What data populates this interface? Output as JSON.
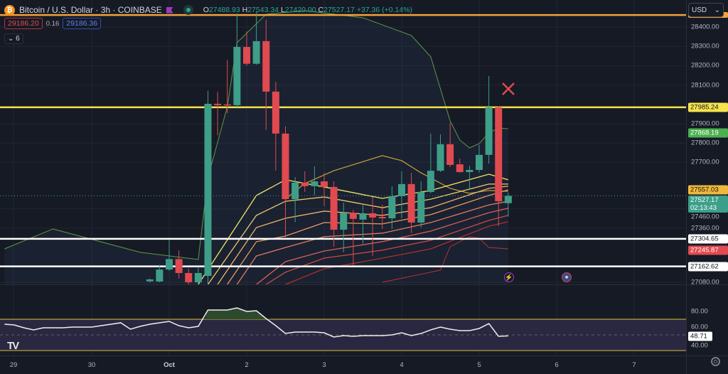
{
  "header": {
    "symbol_icon": "bitcoin-icon",
    "title": "Bitcoin / U.S. Dollar · 3h · COINBASE",
    "open_label": "O",
    "open": "27488.93",
    "high_label": "H",
    "high": "27543.34",
    "low_label": "L",
    "low": "27420.00",
    "close_label": "C",
    "close": "27527.17",
    "change": "+37.36 (+0.14%)",
    "sell_price": "29186.20",
    "spread": "0.16",
    "buy_price": "29186.36",
    "indicators_collapsed_count": "6"
  },
  "currency": "USD",
  "colors": {
    "up": "#3e9e88",
    "down": "#e04a50",
    "background": "#161a25",
    "grid": "#222632",
    "yellow_line": "#f7e34b",
    "orange_line": "#f2a33a",
    "white_line": "#ffffff",
    "upper_band": "#5e9a44",
    "lower_band": "#b8303a",
    "golden_ma": "#c9a23a",
    "rsi_line": "#eeeeee",
    "rsi_band": "#b8a23a",
    "rsi_fill": "#2a2740",
    "overbought_fill": "#2e4a2e"
  },
  "chart_data": {
    "type": "candlestick",
    "interval": "3h",
    "time_axis_ticks": [
      "29",
      "30",
      "Oct",
      "2",
      "3",
      "4",
      "5",
      "6",
      "7"
    ],
    "price_axis_ticks": [
      "28400.00",
      "28300.00",
      "28200.00",
      "28100.00",
      "27900.00",
      "27800.00",
      "27700.00",
      "27460.00",
      "27360.00",
      "27080.00"
    ],
    "price_tick_values": [
      28400,
      28300,
      28200,
      28100,
      27900,
      27800,
      27700,
      27460,
      27360,
      27080
    ],
    "ylim": [
      27080,
      28460
    ],
    "grid": true,
    "candles": [
      {
        "t": "Sep 30 18:00",
        "o": 27085,
        "h": 27100,
        "l": 27078,
        "c": 27095
      },
      {
        "t": "Sep 30 21:00",
        "o": 27084,
        "h": 27170,
        "l": 27080,
        "c": 27146
      },
      {
        "t": "Oct 1 00:00",
        "o": 27146,
        "h": 27300,
        "l": 27140,
        "c": 27200
      },
      {
        "t": "Oct 1 03:00",
        "o": 27200,
        "h": 27245,
        "l": 27100,
        "c": 27128
      },
      {
        "t": "Oct 1 06:00",
        "o": 27128,
        "h": 27150,
        "l": 27060,
        "c": 27080
      },
      {
        "t": "Oct 1 09:00",
        "o": 27080,
        "h": 27160,
        "l": 27070,
        "c": 27128
      },
      {
        "t": "Oct 1 12:00",
        "o": 27113,
        "h": 28070,
        "l": 27070,
        "c": 28003
      },
      {
        "t": "Oct 1 15:00",
        "o": 28003,
        "h": 28065,
        "l": 27840,
        "c": 27996
      },
      {
        "t": "Oct 1 18:00",
        "o": 28000,
        "h": 28230,
        "l": 27955,
        "c": 27995
      },
      {
        "t": "Oct 1 21:00",
        "o": 27996,
        "h": 28470,
        "l": 27985,
        "c": 28297
      },
      {
        "t": "Oct 2 00:00",
        "o": 28297,
        "h": 28378,
        "l": 28200,
        "c": 28210
      },
      {
        "t": "Oct 2 03:00",
        "o": 28210,
        "h": 28480,
        "l": 28205,
        "c": 28327
      },
      {
        "t": "Oct 2 06:00",
        "o": 28327,
        "h": 28437,
        "l": 27867,
        "c": 28066
      },
      {
        "t": "Oct 2 09:00",
        "o": 28066,
        "h": 28117,
        "l": 27657,
        "c": 27849
      },
      {
        "t": "Oct 2 12:00",
        "o": 27849,
        "h": 27886,
        "l": 27308,
        "c": 27510
      },
      {
        "t": "Oct 2 15:00",
        "o": 27510,
        "h": 27624,
        "l": 27390,
        "c": 27595
      },
      {
        "t": "Oct 2 18:00",
        "o": 27595,
        "h": 27654,
        "l": 27547,
        "c": 27577
      },
      {
        "t": "Oct 2 21:00",
        "o": 27577,
        "h": 27680,
        "l": 27530,
        "c": 27602
      },
      {
        "t": "Oct 3 00:00",
        "o": 27602,
        "h": 27646,
        "l": 27474,
        "c": 27573
      },
      {
        "t": "Oct 3 03:00",
        "o": 27573,
        "h": 27602,
        "l": 27264,
        "c": 27352
      },
      {
        "t": "Oct 3 06:00",
        "o": 27352,
        "h": 27492,
        "l": 27235,
        "c": 27440
      },
      {
        "t": "Oct 3 09:00",
        "o": 27440,
        "h": 27455,
        "l": 27168,
        "c": 27408
      },
      {
        "t": "Oct 3 12:00",
        "o": 27404,
        "h": 27481,
        "l": 27279,
        "c": 27437
      },
      {
        "t": "Oct 3 15:00",
        "o": 27437,
        "h": 27521,
        "l": 27216,
        "c": 27415
      },
      {
        "t": "Oct 3 18:00",
        "o": 27418,
        "h": 27481,
        "l": 27356,
        "c": 27411
      },
      {
        "t": "Oct 3 21:00",
        "o": 27411,
        "h": 27577,
        "l": 27356,
        "c": 27525
      },
      {
        "t": "Oct 4 00:00",
        "o": 27525,
        "h": 27654,
        "l": 27411,
        "c": 27588
      },
      {
        "t": "Oct 4 03:00",
        "o": 27588,
        "h": 27646,
        "l": 27334,
        "c": 27389
      },
      {
        "t": "Oct 4 06:00",
        "o": 27389,
        "h": 27602,
        "l": 27363,
        "c": 27547
      },
      {
        "t": "Oct 4 09:00",
        "o": 27547,
        "h": 27849,
        "l": 27540,
        "c": 27657
      },
      {
        "t": "Oct 4 12:00",
        "o": 27657,
        "h": 27845,
        "l": 27650,
        "c": 27794
      },
      {
        "t": "Oct 4 15:00",
        "o": 27794,
        "h": 27904,
        "l": 27676,
        "c": 27687
      },
      {
        "t": "Oct 4 18:00",
        "o": 27690,
        "h": 27720,
        "l": 27647,
        "c": 27650
      },
      {
        "t": "Oct 4 21:00",
        "o": 27650,
        "h": 27683,
        "l": 27566,
        "c": 27661
      },
      {
        "t": "Oct 5 00:00",
        "o": 27661,
        "h": 27790,
        "l": 27647,
        "c": 27739
      },
      {
        "t": "Oct 5 03:00",
        "o": 27739,
        "h": 28146,
        "l": 27694,
        "c": 27985
      },
      {
        "t": "Oct 5 06:00",
        "o": 27985,
        "h": 27990,
        "l": 27371,
        "c": 27499
      },
      {
        "t": "Oct 5 09:00",
        "o": 27488.93,
        "h": 27543.34,
        "l": 27420.0,
        "c": 27527.17
      }
    ],
    "upper_band": [
      [
        "Sep 28 21:00",
        27253
      ],
      [
        "Sep 29 12:00",
        27356
      ],
      [
        "Sep 30 15:00",
        27235
      ],
      [
        "Oct 1 09:00",
        27198
      ],
      [
        "Oct 1 12:00",
        27621
      ],
      [
        "Oct 1 18:00",
        27988
      ],
      [
        "Oct 1 21:00",
        28319
      ],
      [
        "Oct 2 06:00",
        28466
      ],
      [
        "Oct 2 18:00",
        28485
      ],
      [
        "Oct 3 12:00",
        28448
      ],
      [
        "Oct 4 03:00",
        28356
      ],
      [
        "Oct 4 09:00",
        28246
      ],
      [
        "Oct 4 15:00",
        27915
      ],
      [
        "Oct 4 18:00",
        27816
      ],
      [
        "Oct 4 21:00",
        27775
      ],
      [
        "Oct 5 00:00",
        27797
      ],
      [
        "Oct 5 03:00",
        27852
      ],
      [
        "Oct 5 06:00",
        27878
      ],
      [
        "Oct 5 09:00",
        27874
      ]
    ],
    "lower_band": [
      [
        "Oct 3 18:00",
        27080
      ],
      [
        "Oct 4 12:00",
        27143
      ],
      [
        "Oct 4 15:00",
        27264
      ],
      [
        "Oct 4 21:00",
        27316
      ],
      [
        "Oct 5 00:00",
        27308
      ],
      [
        "Oct 5 03:00",
        27260
      ],
      [
        "Oct 5 09:00",
        27253
      ]
    ],
    "golden_ma": [
      [
        "Oct 2 12:00",
        27510
      ],
      [
        "Oct 2 18:00",
        27591
      ],
      [
        "Oct 3 03:00",
        27657
      ],
      [
        "Oct 3 18:00",
        27735
      ],
      [
        "Oct 4 00:00",
        27709
      ],
      [
        "Oct 4 06:00",
        27646
      ],
      [
        "Oct 4 15:00",
        27566
      ],
      [
        "Oct 4 21:00",
        27540
      ],
      [
        "Oct 5 03:00",
        27555
      ],
      [
        "Oct 5 09:00",
        27550
      ]
    ],
    "ribbon": [
      {
        "color": "#f5e663",
        "points": [
          [
            "Oct 1 09:00",
            27069
          ],
          [
            "Oct 2 03:00",
            27529
          ],
          [
            "Oct 2 12:00",
            27610
          ],
          [
            "Oct 3 00:00",
            27573
          ],
          [
            "Oct 3 18:00",
            27514
          ],
          [
            "Oct 4 09:00",
            27555
          ],
          [
            "Oct 5 03:00",
            27639
          ],
          [
            "Oct 5 09:00",
            27610
          ]
        ]
      },
      {
        "color": "#f0c870",
        "points": [
          [
            "Oct 1 12:00",
            27069
          ],
          [
            "Oct 2 03:00",
            27426
          ],
          [
            "Oct 2 12:00",
            27499
          ],
          [
            "Oct 3 00:00",
            27521
          ],
          [
            "Oct 3 18:00",
            27466
          ],
          [
            "Oct 4 09:00",
            27510
          ],
          [
            "Oct 5 03:00",
            27588
          ],
          [
            "Oct 5 09:00",
            27588
          ]
        ]
      },
      {
        "color": "#eeb56a",
        "points": [
          [
            "Oct 1 15:00",
            27069
          ],
          [
            "Oct 2 03:00",
            27363
          ],
          [
            "Oct 2 12:00",
            27411
          ],
          [
            "Oct 3 00:00",
            27448
          ],
          [
            "Oct 3 18:00",
            27426
          ],
          [
            "Oct 4 09:00",
            27466
          ],
          [
            "Oct 5 03:00",
            27566
          ],
          [
            "Oct 5 09:00",
            27577
          ]
        ]
      },
      {
        "color": "#e99a62",
        "points": [
          [
            "Oct 1 18:00",
            27069
          ],
          [
            "Oct 2 03:00",
            27290
          ],
          [
            "Oct 2 12:00",
            27319
          ],
          [
            "Oct 3 00:00",
            27389
          ],
          [
            "Oct 3 18:00",
            27382
          ],
          [
            "Oct 4 09:00",
            27430
          ],
          [
            "Oct 5 03:00",
            27529
          ],
          [
            "Oct 5 09:00",
            27558
          ]
        ]
      },
      {
        "color": "#e27c5e",
        "points": [
          [
            "Oct 1 21:00",
            27069
          ],
          [
            "Oct 2 03:00",
            27216
          ],
          [
            "Oct 2 12:00",
            27260
          ],
          [
            "Oct 3 00:00",
            27316
          ],
          [
            "Oct 3 18:00",
            27334
          ],
          [
            "Oct 4 09:00",
            27389
          ],
          [
            "Oct 5 03:00",
            27480
          ],
          [
            "Oct 5 09:00",
            27499
          ]
        ]
      },
      {
        "color": "#d8605a",
        "points": [
          [
            "Oct 2 03:00",
            27069
          ],
          [
            "Oct 2 12:00",
            27187
          ],
          [
            "Oct 3 00:00",
            27242
          ],
          [
            "Oct 3 18:00",
            27290
          ],
          [
            "Oct 4 09:00",
            27345
          ],
          [
            "Oct 5 03:00",
            27440
          ],
          [
            "Oct 5 09:00",
            27463
          ]
        ]
      },
      {
        "color": "#c84a48",
        "points": [
          [
            "Oct 2 06:00",
            27069
          ],
          [
            "Oct 2 12:00",
            27132
          ],
          [
            "Oct 3 00:00",
            27205
          ],
          [
            "Oct 3 18:00",
            27246
          ],
          [
            "Oct 4 09:00",
            27297
          ],
          [
            "Oct 5 03:00",
            27400
          ],
          [
            "Oct 5 09:00",
            27426
          ]
        ]
      },
      {
        "color": "#a8322c",
        "points": [
          [
            "Oct 2 12:00",
            27069
          ],
          [
            "Oct 3 00:00",
            27150
          ],
          [
            "Oct 3 18:00",
            27205
          ],
          [
            "Oct 4 09:00",
            27253
          ],
          [
            "Oct 5 03:00",
            27370
          ],
          [
            "Oct 5 09:00",
            27393
          ]
        ]
      }
    ],
    "horizontal_lines": [
      {
        "price": 28462,
        "color": "#f2a33a",
        "label": ""
      },
      {
        "price": 27985.24,
        "color": "#f7e34b",
        "label": "27985.24"
      },
      {
        "price": 27304.65,
        "color": "#ffffff",
        "label": "27304.65"
      },
      {
        "price": 27162.62,
        "color": "#ffffff",
        "label": "27162.62"
      }
    ],
    "price_tags": [
      {
        "label": "27985.24",
        "bg": "#f7e34b",
        "fg": "#131722",
        "price": 27985.24
      },
      {
        "label": "27868.19",
        "bg": "#4caf50",
        "fg": "#ffffff",
        "price": 27868.19
      },
      {
        "label": "27557.03",
        "bg": "#f0b73a",
        "fg": "#131722",
        "price": 27557.03
      },
      {
        "label": "27527.17",
        "sub": "02:13:43",
        "bg": "#3c9f8a",
        "fg": "#ffffff",
        "price": 27527.17
      },
      {
        "label": "27304.65",
        "bg": "#ffffff",
        "fg": "#131722",
        "price": 27304.65
      },
      {
        "label": "27245.87",
        "bg": "#e04a50",
        "fg": "#ffffff",
        "price": 27245.87
      },
      {
        "label": "27162.62",
        "bg": "#ffffff",
        "fg": "#131722",
        "price": 27162.62
      }
    ],
    "current_price": 27527.17,
    "countdown": "02:13:43",
    "rsi": {
      "axis_ticks": [
        "80.00",
        "60.00",
        "40.00"
      ],
      "tick_values": [
        80,
        60,
        40
      ],
      "current_label": "48.71",
      "upper_band": 70,
      "lower_band": 30,
      "mid": 50,
      "values": [
        63.6,
        62.7,
        59.1,
        56.4,
        59.1,
        59.1,
        59.1,
        60,
        60,
        60,
        61.8,
        63.6,
        65.5,
        57.3,
        60.9,
        63.6,
        65.5,
        67.3,
        61.8,
        59.1,
        60.9,
        81.8,
        81.8,
        81.8,
        84.5,
        80,
        80.9,
        70.9,
        61.8,
        51.8,
        53.6,
        53.6,
        53.6,
        52.7,
        47.3,
        49.1,
        48.2,
        49.1,
        49.1,
        49.1,
        50,
        52.7,
        49.1,
        51.8,
        56.4,
        60,
        57.3,
        55.5,
        55.5,
        58.2,
        64.5,
        48.2,
        48.71
      ],
      "first_time": "Sep 28 21:00"
    }
  },
  "markers": {
    "sell_signal": "x-mark-icon",
    "event_icon": "lightning-icon",
    "country_event": "us-flag-icon"
  },
  "logo": "TV",
  "settings_icon": "gear-icon"
}
